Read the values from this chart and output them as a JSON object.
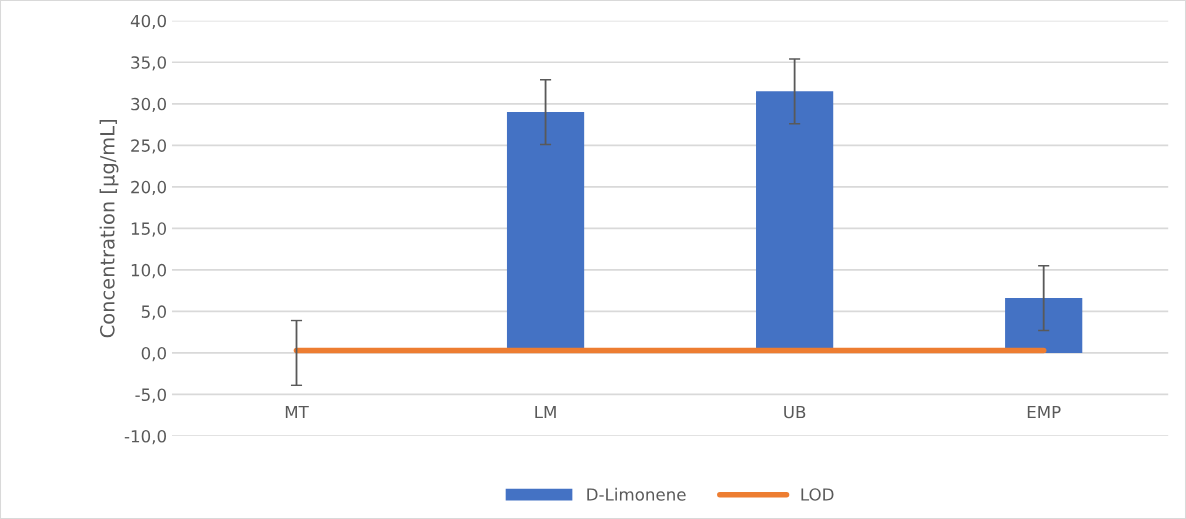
{
  "chart_data": {
    "type": "bar",
    "ylabel": "Concentration [µg/mL]",
    "categories": [
      "MT",
      "LM",
      "UB",
      "EMP"
    ],
    "series": [
      {
        "name": "D-Limonene",
        "color": "#4472c4",
        "values": [
          0.0,
          29.0,
          31.5,
          6.6
        ],
        "errors": [
          3.9,
          3.9,
          3.9,
          3.9
        ]
      },
      {
        "name": "LOD",
        "type": "line",
        "color": "#ed7d31",
        "values": [
          0.3,
          0.3,
          0.3,
          0.3
        ]
      }
    ],
    "ylim": [
      -10,
      40
    ],
    "yticks": [
      {
        "value": -10,
        "label": "-10,0"
      },
      {
        "value": -5,
        "label": "-5,0"
      },
      {
        "value": 0,
        "label": "0,0"
      },
      {
        "value": 5,
        "label": "5,0"
      },
      {
        "value": 10,
        "label": "10,0"
      },
      {
        "value": 15,
        "label": "15,0"
      },
      {
        "value": 20,
        "label": "20,0"
      },
      {
        "value": 25,
        "label": "25,0"
      },
      {
        "value": 30,
        "label": "30,0"
      },
      {
        "value": 35,
        "label": "35,0"
      },
      {
        "value": 40,
        "label": "40,0"
      }
    ],
    "grid": "y",
    "legend": "bottom"
  }
}
